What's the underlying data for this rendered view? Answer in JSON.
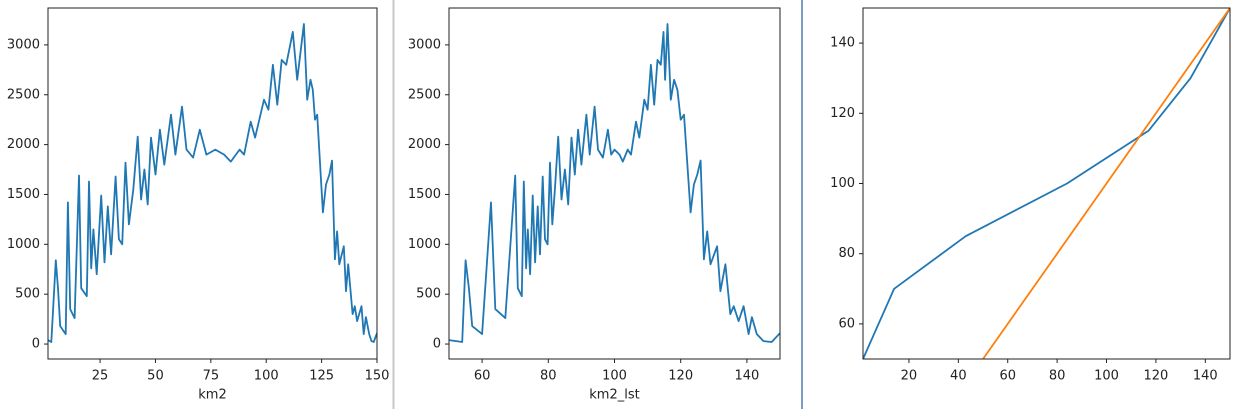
{
  "chart_data": [
    {
      "type": "line",
      "xlabel": "km2",
      "xlim": [
        1.5,
        150
      ],
      "ylim": [
        -150,
        3370
      ],
      "xticks": [
        25,
        50,
        75,
        100,
        125,
        150
      ],
      "yticks": [
        0,
        500,
        1000,
        1500,
        2000,
        2500,
        3000
      ],
      "series": [
        {
          "color": "#1f77b4",
          "x": [
            1.5,
            3,
            5,
            6,
            7,
            9.5,
            10.5,
            11.5,
            13.5,
            15.5,
            16.5,
            19,
            20,
            21,
            22,
            23.5,
            25.5,
            27,
            28.5,
            30,
            32,
            33.5,
            35,
            36.5,
            38,
            40,
            42,
            43.5,
            45,
            46.5,
            48,
            50,
            52,
            54,
            57,
            59,
            62,
            64,
            67,
            70,
            73,
            77,
            81,
            84,
            88,
            90,
            93,
            95,
            99,
            101,
            103,
            105,
            107,
            109,
            112,
            114,
            117,
            118.5,
            120,
            121,
            122,
            123,
            125.6,
            127,
            128.5,
            129.7,
            131,
            132,
            133,
            135,
            136,
            137,
            139,
            140,
            141,
            143,
            144,
            145,
            146.5,
            147.5,
            148.5,
            150
          ],
          "values": [
            40,
            20,
            840,
            560,
            180,
            100,
            1420,
            350,
            260,
            1690,
            560,
            480,
            1630,
            760,
            1150,
            700,
            1490,
            820,
            1380,
            900,
            1680,
            1050,
            1000,
            1820,
            1200,
            1550,
            2080,
            1450,
            1750,
            1400,
            2070,
            1700,
            2150,
            1800,
            2300,
            1900,
            2380,
            1950,
            1870,
            2150,
            1900,
            1950,
            1900,
            1830,
            1950,
            1900,
            2230,
            2070,
            2450,
            2350,
            2800,
            2400,
            2850,
            2800,
            3130,
            2650,
            3210,
            2450,
            2650,
            2550,
            2250,
            2300,
            1320,
            1600,
            1700,
            1840,
            850,
            1130,
            800,
            980,
            530,
            800,
            300,
            380,
            230,
            380,
            100,
            270,
            100,
            30,
            20,
            110
          ]
        }
      ]
    },
    {
      "type": "line",
      "xlabel": "km2_lst",
      "xlim": [
        50,
        150
      ],
      "ylim": [
        -150,
        3370
      ],
      "xticks": [
        60,
        80,
        100,
        120,
        140
      ],
      "yticks": [
        0,
        500,
        1000,
        1500,
        2000,
        2500,
        3000
      ],
      "series": [
        {
          "color": "#1f77b4",
          "x": [
            50,
            54,
            55,
            56,
            57,
            60,
            62.7,
            64,
            67,
            70,
            70.8,
            72,
            72.6,
            73.3,
            73.8,
            74.5,
            75.3,
            76,
            76.8,
            77.5,
            78.3,
            79,
            79.8,
            80.5,
            81.2,
            82,
            83,
            84,
            85,
            86,
            87,
            88,
            89,
            90,
            91.5,
            92.5,
            94,
            95,
            96.5,
            98,
            99,
            100,
            101.5,
            102.5,
            104,
            105,
            106.5,
            107.5,
            109,
            110,
            111,
            112,
            113,
            114,
            114.8,
            115.3,
            116,
            117,
            118,
            119,
            120,
            121,
            123,
            124,
            125,
            126,
            127,
            128,
            129,
            131,
            132,
            133.5,
            135,
            136,
            137.5,
            139,
            140.5,
            141.5,
            143,
            145,
            147.5,
            150
          ],
          "values": [
            40,
            20,
            840,
            560,
            180,
            100,
            1420,
            350,
            260,
            1690,
            560,
            480,
            1630,
            760,
            1150,
            700,
            1490,
            820,
            1380,
            900,
            1680,
            1050,
            1000,
            1820,
            1200,
            1550,
            2080,
            1450,
            1750,
            1400,
            2070,
            1700,
            2150,
            1800,
            2300,
            1900,
            2380,
            1950,
            1870,
            2150,
            1900,
            1950,
            1900,
            1830,
            1950,
            1900,
            2230,
            2070,
            2450,
            2350,
            2800,
            2400,
            2850,
            2800,
            3130,
            2650,
            3210,
            2450,
            2650,
            2550,
            2250,
            2300,
            1320,
            1600,
            1700,
            1840,
            850,
            1130,
            800,
            980,
            530,
            800,
            300,
            380,
            230,
            380,
            100,
            270,
            100,
            30,
            20,
            110
          ]
        }
      ]
    },
    {
      "type": "line",
      "xlim": [
        1.4,
        150
      ],
      "ylim": [
        50,
        150
      ],
      "xticks": [
        20,
        40,
        60,
        80,
        100,
        120,
        140
      ],
      "yticks": [
        60,
        80,
        100,
        120,
        140
      ],
      "series": [
        {
          "color": "#1f77b4",
          "x": [
            1.4,
            14,
            43,
            84,
            117,
            134,
            150
          ],
          "values": [
            50,
            70,
            85,
            100,
            115,
            130,
            150
          ]
        },
        {
          "color": "#ff7f0e",
          "x": [
            50,
            150
          ],
          "values": [
            50,
            150
          ]
        }
      ]
    }
  ]
}
